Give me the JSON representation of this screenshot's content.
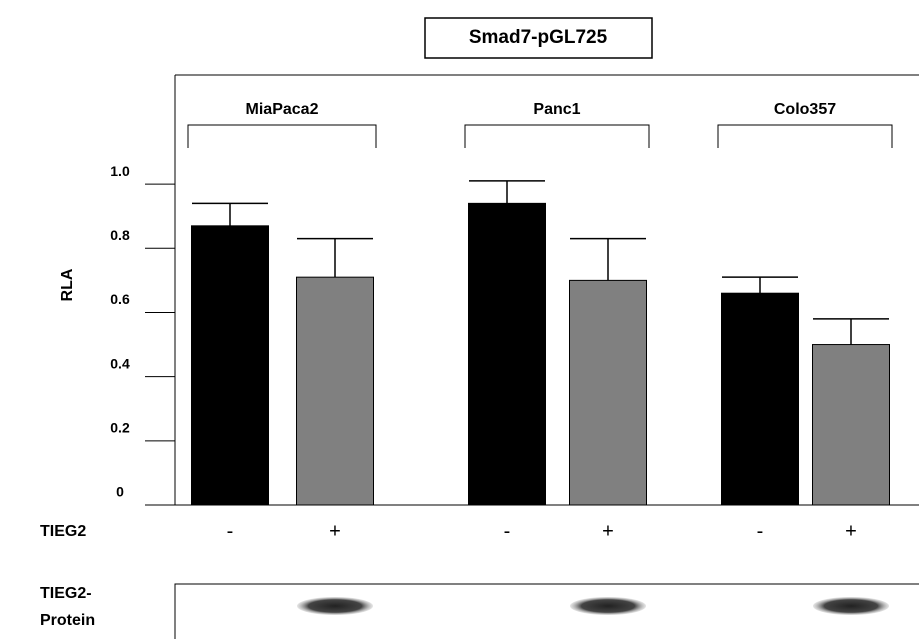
{
  "chart_data": {
    "type": "bar",
    "title": "Smad7-pGL725",
    "ylabel": "RLA",
    "categories": [
      "MiaPaca2",
      "Panc1",
      "Colo357"
    ],
    "series": [
      {
        "name": "-",
        "color": "#000000",
        "values": [
          0.87,
          0.94,
          0.66
        ],
        "errors": [
          0.07,
          0.07,
          0.05
        ]
      },
      {
        "name": "+",
        "color": "#808080",
        "values": [
          0.71,
          0.7,
          0.5
        ],
        "errors": [
          0.12,
          0.13,
          0.08
        ]
      }
    ],
    "ylim": [
      0,
      1.34
    ],
    "yticks": [
      0,
      0.2,
      0.4,
      0.6,
      0.8,
      {
        "value": 1,
        "label": "1.0"
      }
    ],
    "row_label": "TIEG2",
    "blot_label": [
      "TIEG2-",
      "Protein"
    ]
  }
}
